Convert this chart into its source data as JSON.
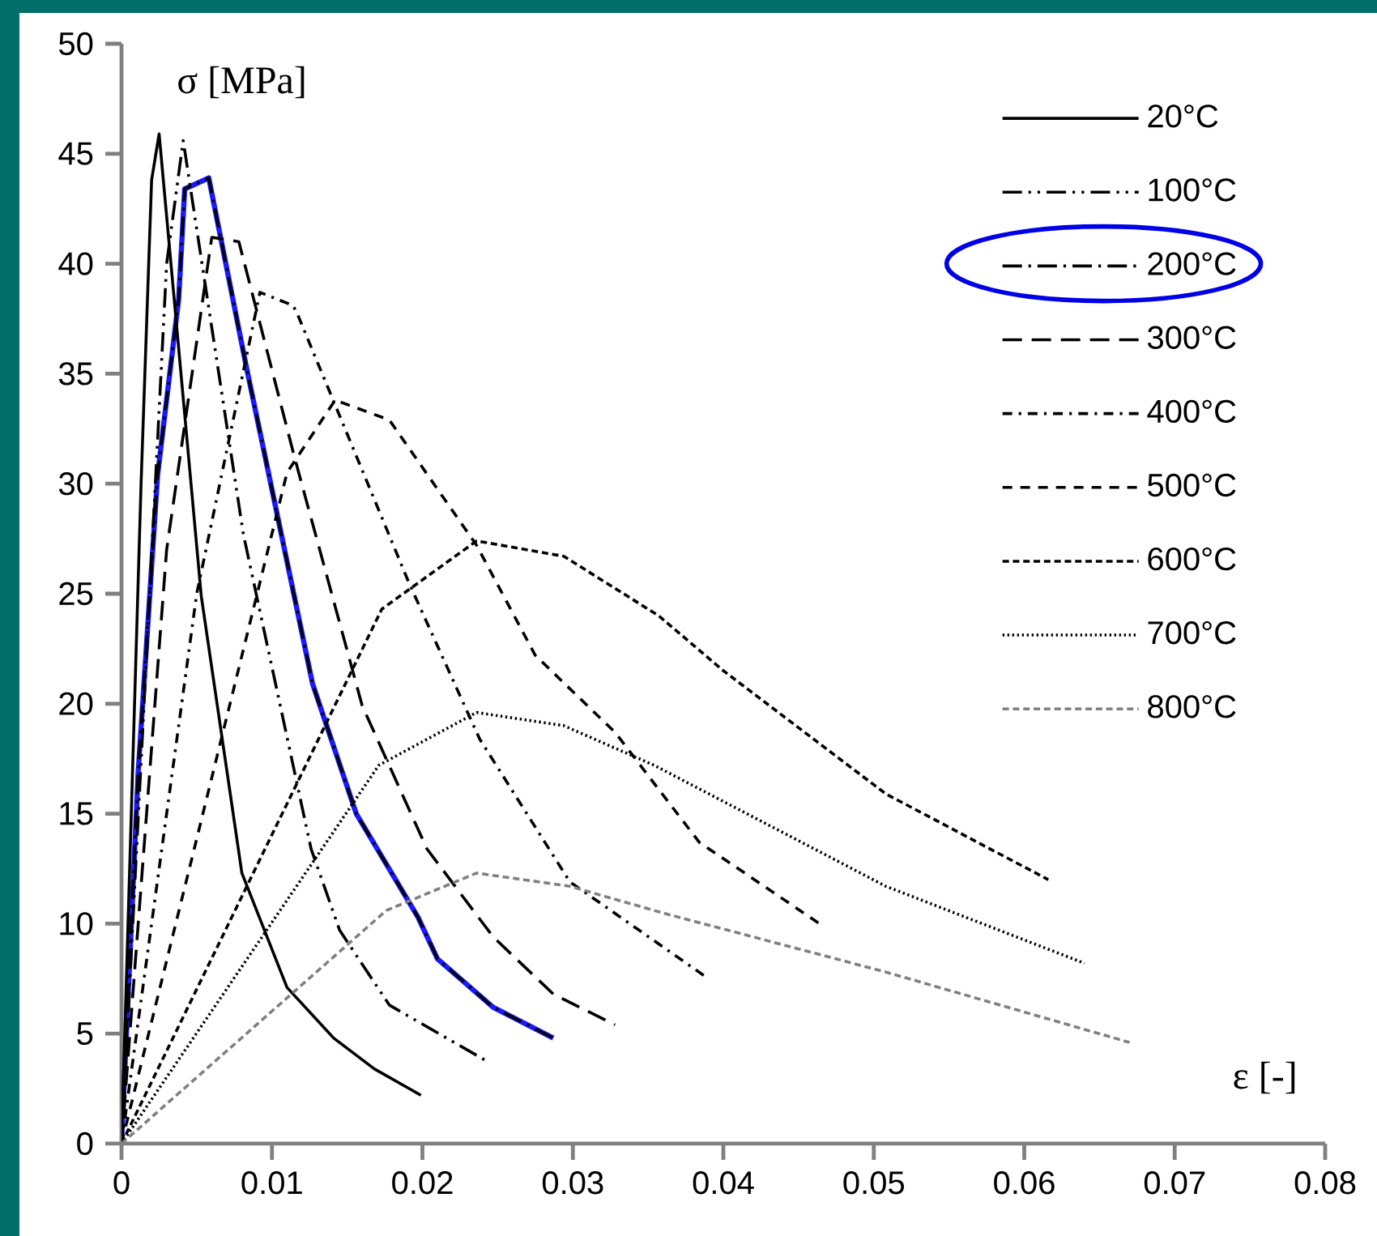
{
  "chart_data": {
    "type": "line",
    "xlabel": "ε [-]",
    "ylabel": "σ [MPa]",
    "xlim": [
      0,
      0.08
    ],
    "ylim": [
      0,
      50
    ],
    "xticks": [
      0,
      0.01,
      0.02,
      0.03,
      0.04,
      0.05,
      0.06,
      0.07,
      0.08
    ],
    "yticks": [
      0,
      5,
      10,
      15,
      20,
      25,
      30,
      35,
      40,
      45,
      50
    ],
    "legend": "top right",
    "marker": "none",
    "series": [
      {
        "color": "#1a1aff",
        "line_style": "solid",
        "x": [
          0,
          0.0011,
          0.0024,
          0.0038,
          0.0042,
          0.0058,
          0.0083,
          0.0127,
          0.0156,
          0.0197,
          0.021,
          0.0247,
          0.0287
        ],
        "values": [
          0,
          16.8,
          30.4,
          38.4,
          43.4,
          43.9,
          35.3,
          20.9,
          15,
          10.3,
          8.4,
          6.2,
          4.8
        ]
      },
      {
        "name": "20°C",
        "color": "#000000",
        "line_style": "solid",
        "x": [
          0,
          0.0013,
          0.002,
          0.0025,
          0.0053,
          0.008,
          0.011,
          0.0141,
          0.0168,
          0.0199
        ],
        "values": [
          0,
          30,
          43.8,
          45.9,
          24.9,
          12.3,
          7.1,
          4.8,
          3.4,
          2.2
        ]
      },
      {
        "name": "100°C",
        "color": "#000000",
        "line_style": "dashdotdotted",
        "x": [
          0,
          0.003,
          0.0041,
          0.0081,
          0.0126,
          0.0145,
          0.0178,
          0.0244
        ],
        "values": [
          0,
          40,
          45.6,
          27.7,
          13.4,
          9.7,
          6.3,
          3.7
        ]
      },
      {
        "name": "200°C",
        "color": "#000000",
        "line_style": "dashdotted",
        "x": [
          0,
          0.0011,
          0.0024,
          0.0038,
          0.0042,
          0.0058,
          0.0083,
          0.0127,
          0.0156,
          0.0197,
          0.021,
          0.0247,
          0.0287
        ],
        "values": [
          0,
          16.8,
          30.4,
          38.4,
          43.4,
          43.9,
          35.3,
          20.9,
          15,
          10.3,
          8.4,
          6.2,
          4.8
        ]
      },
      {
        "name": "300°C",
        "color": "#000000",
        "line_style": "long dashed",
        "x": [
          0,
          0.003,
          0.006,
          0.0078,
          0.0115,
          0.016,
          0.0203,
          0.0247,
          0.0287,
          0.0328
        ],
        "values": [
          0,
          27,
          41.2,
          41,
          31.2,
          19.9,
          13.4,
          9.4,
          6.8,
          5.4
        ]
      },
      {
        "name": "400°C",
        "color": "#000000",
        "line_style": "loosely dashdotted",
        "x": [
          0,
          0.005,
          0.0092,
          0.0114,
          0.0117,
          0.0191,
          0.0238,
          0.0298,
          0.0388
        ],
        "values": [
          0,
          25,
          38.7,
          38.1,
          37.7,
          25.5,
          18.4,
          11.9,
          7.6
        ]
      },
      {
        "name": "500°C",
        "color": "#000000",
        "line_style": "dashed",
        "x": [
          0,
          0.011,
          0.0142,
          0.0178,
          0.0236,
          0.0275,
          0.0328,
          0.0384,
          0.0466
        ],
        "values": [
          0,
          30.5,
          33.8,
          32.9,
          27.2,
          22.2,
          18.7,
          13.7,
          9.9
        ]
      },
      {
        "name": "600°C",
        "color": "#000000",
        "line_style": "densely dashed",
        "x": [
          0,
          0.0173,
          0.0236,
          0.0294,
          0.0357,
          0.04,
          0.0508,
          0.0616
        ],
        "values": [
          0,
          24.3,
          27.4,
          26.7,
          24,
          21.5,
          15.9,
          12
        ]
      },
      {
        "name": "700°C",
        "color": "#000000",
        "line_style": "dotted",
        "x": [
          0,
          0.0171,
          0.0236,
          0.0294,
          0.0354,
          0.0508,
          0.064
        ],
        "values": [
          0,
          17.2,
          19.6,
          19,
          17.2,
          11.7,
          8.2
        ]
      },
      {
        "name": "800°C",
        "color": "#808080",
        "line_style": "densely dashed",
        "x": [
          0,
          0.0176,
          0.0236,
          0.0298,
          0.0359,
          0.0508,
          0.067
        ],
        "values": [
          0,
          10.6,
          12.3,
          11.7,
          10.5,
          7.8,
          4.6
        ]
      }
    ]
  }
}
